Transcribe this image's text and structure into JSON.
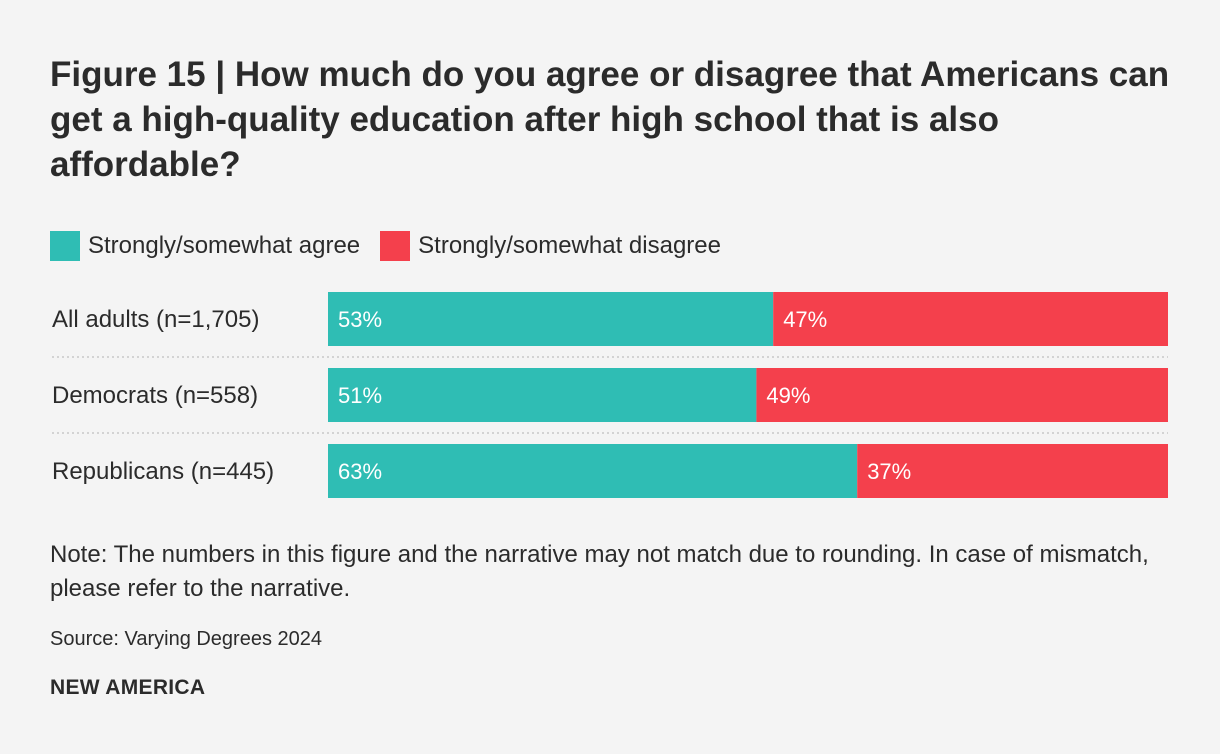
{
  "chart_data": {
    "type": "bar",
    "orientation": "horizontal",
    "stacked": true,
    "title": "Figure 15 | How much do you agree or disagree that Americans can get a high-quality education after high school that is also affordable?",
    "categories": [
      "All adults (n=1,705)",
      "Democrats (n=558)",
      "Republicans (n=445)"
    ],
    "series": [
      {
        "name": "Strongly/somewhat agree",
        "values": [
          53,
          51,
          63
        ],
        "labels": [
          "53%",
          "51%",
          "63%"
        ],
        "color": "#2fbdb4"
      },
      {
        "name": "Strongly/somewhat disagree",
        "values": [
          47,
          49,
          37
        ],
        "labels": [
          "47%",
          "49%",
          "37%"
        ],
        "color": "#f4404c"
      }
    ],
    "xlim": [
      0,
      100
    ],
    "legend": "top-left",
    "grid": false
  },
  "note": "Note: The numbers in this figure and the narrative may not match due to rounding. In case of mismatch, please refer to the narrative.",
  "source": "Source: Varying Degrees 2024",
  "brand": "NEW AMERICA"
}
